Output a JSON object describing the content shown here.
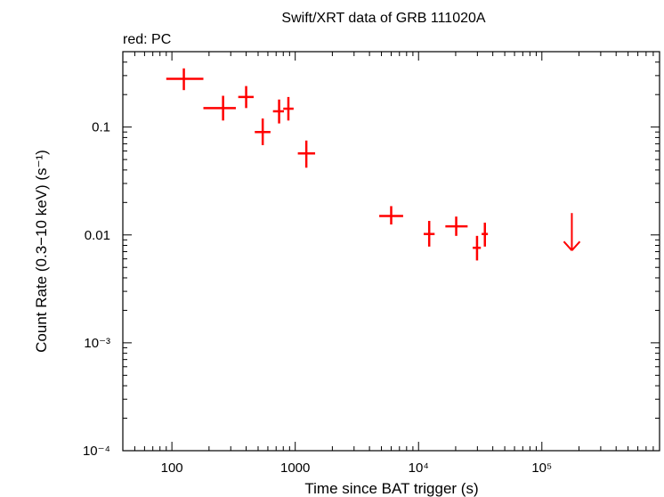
{
  "chart_data": {
    "type": "scatter",
    "title": "Swift/XRT data of GRB 111020A",
    "subtitle": "red: PC",
    "xlabel": "Time since BAT trigger (s)",
    "ylabel": "Count Rate (0.3−10 keV) (s⁻¹)",
    "xscale": "log",
    "yscale": "log",
    "xlim": [
      40,
      900000
    ],
    "ylim": [
      0.0001,
      0.5
    ],
    "x_ticks": [
      {
        "value": 100,
        "label": "100"
      },
      {
        "value": 1000,
        "label": "1000"
      },
      {
        "value": 10000,
        "label": "10⁴"
      },
      {
        "value": 100000,
        "label": "10⁵"
      }
    ],
    "y_ticks": [
      {
        "value": 0.1,
        "label": "0.1"
      },
      {
        "value": 0.01,
        "label": "0.01"
      },
      {
        "value": 0.001,
        "label": "10⁻³"
      },
      {
        "value": 0.0001,
        "label": "10⁻⁴"
      }
    ],
    "series": [
      {
        "name": "PC",
        "color": "#ff0000",
        "points": [
          {
            "x": 125,
            "xlo": 90,
            "xhi": 180,
            "y": 0.28,
            "ylo": 0.22,
            "yhi": 0.35
          },
          {
            "x": 260,
            "xlo": 180,
            "xhi": 330,
            "y": 0.15,
            "ylo": 0.115,
            "yhi": 0.195
          },
          {
            "x": 400,
            "xlo": 345,
            "xhi": 460,
            "y": 0.19,
            "ylo": 0.15,
            "yhi": 0.24
          },
          {
            "x": 545,
            "xlo": 470,
            "xhi": 630,
            "y": 0.09,
            "ylo": 0.068,
            "yhi": 0.12
          },
          {
            "x": 740,
            "xlo": 660,
            "xhi": 810,
            "y": 0.14,
            "ylo": 0.108,
            "yhi": 0.18
          },
          {
            "x": 880,
            "xlo": 800,
            "xhi": 970,
            "y": 0.148,
            "ylo": 0.115,
            "yhi": 0.19
          },
          {
            "x": 1230,
            "xlo": 1050,
            "xhi": 1450,
            "y": 0.057,
            "ylo": 0.042,
            "yhi": 0.075
          },
          {
            "x": 6000,
            "xlo": 4800,
            "xhi": 7500,
            "y": 0.015,
            "ylo": 0.0125,
            "yhi": 0.0185
          },
          {
            "x": 12200,
            "xlo": 11000,
            "xhi": 13500,
            "y": 0.0102,
            "ylo": 0.0078,
            "yhi": 0.0135
          },
          {
            "x": 20200,
            "xlo": 16500,
            "xhi": 25000,
            "y": 0.012,
            "ylo": 0.0098,
            "yhi": 0.0148
          },
          {
            "x": 29800,
            "xlo": 27500,
            "xhi": 32000,
            "y": 0.0076,
            "ylo": 0.0058,
            "yhi": 0.0098
          },
          {
            "x": 34500,
            "xlo": 32500,
            "xhi": 36500,
            "y": 0.0102,
            "ylo": 0.0078,
            "yhi": 0.013
          }
        ],
        "upper_limits": [
          {
            "x": 175000,
            "y": 0.0105
          }
        ]
      }
    ]
  }
}
